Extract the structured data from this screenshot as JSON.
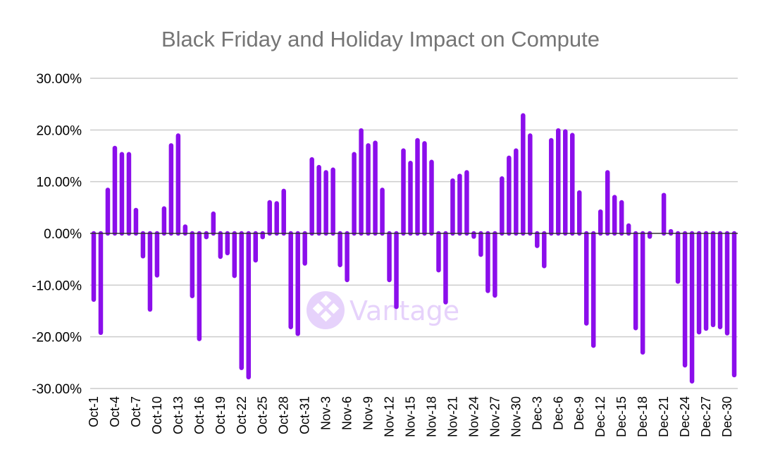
{
  "chart_data": {
    "type": "bar",
    "title": "Black Friday and Holiday Impact on Compute",
    "xlabel": "",
    "ylabel": "",
    "ylim": [
      -30,
      30
    ],
    "yticks": [
      30,
      20,
      10,
      0,
      -10,
      -20,
      -30
    ],
    "ytick_labels": [
      "30.00%",
      "20.00%",
      "10.00%",
      "0.00%",
      "-10.00%",
      "-20.00%",
      "-30.00%"
    ],
    "grid": true,
    "legend": "none",
    "bar_color": "#8b0eeb",
    "watermark": "Vantage",
    "categories": [
      "Oct-1",
      "Oct-2",
      "Oct-3",
      "Oct-4",
      "Oct-5",
      "Oct-6",
      "Oct-7",
      "Oct-8",
      "Oct-9",
      "Oct-10",
      "Oct-11",
      "Oct-12",
      "Oct-13",
      "Oct-14",
      "Oct-15",
      "Oct-16",
      "Oct-17",
      "Oct-18",
      "Oct-19",
      "Oct-20",
      "Oct-21",
      "Oct-22",
      "Oct-23",
      "Oct-24",
      "Oct-25",
      "Oct-26",
      "Oct-27",
      "Oct-28",
      "Oct-29",
      "Oct-30",
      "Oct-31",
      "Nov-1",
      "Nov-2",
      "Nov-3",
      "Nov-4",
      "Nov-5",
      "Nov-6",
      "Nov-7",
      "Nov-8",
      "Nov-9",
      "Nov-10",
      "Nov-11",
      "Nov-12",
      "Nov-13",
      "Nov-14",
      "Nov-15",
      "Nov-16",
      "Nov-17",
      "Nov-18",
      "Nov-19",
      "Nov-20",
      "Nov-21",
      "Nov-22",
      "Nov-23",
      "Nov-24",
      "Nov-25",
      "Nov-26",
      "Nov-27",
      "Nov-28",
      "Nov-29",
      "Nov-30",
      "Dec-1",
      "Dec-2",
      "Dec-3",
      "Dec-4",
      "Dec-5",
      "Dec-6",
      "Dec-7",
      "Dec-8",
      "Dec-9",
      "Dec-10",
      "Dec-11",
      "Dec-12",
      "Dec-13",
      "Dec-14",
      "Dec-15",
      "Dec-16",
      "Dec-17",
      "Dec-18",
      "Dec-19",
      "Dec-20",
      "Dec-21",
      "Dec-22",
      "Dec-23",
      "Dec-24",
      "Dec-25",
      "Dec-26",
      "Dec-27",
      "Dec-28",
      "Dec-29",
      "Dec-30",
      "Dec-31"
    ],
    "values": [
      -12.8,
      -19.2,
      8.4,
      16.5,
      15.3,
      15.3,
      4.5,
      -4.4,
      -14.7,
      -8.1,
      4.8,
      17.0,
      18.9,
      1.3,
      -12.1,
      -20.4,
      -0.7,
      3.8,
      -4.5,
      -3.8,
      -8.2,
      -26.0,
      -27.8,
      -5.2,
      -0.7,
      6.0,
      5.8,
      8.2,
      -18.1,
      -19.4,
      -5.8,
      14.3,
      12.8,
      11.8,
      12.3,
      -6.1,
      -9.0,
      15.3,
      19.9,
      17.0,
      17.5,
      8.4,
      -9.0,
      -14.2,
      16.0,
      13.6,
      18.0,
      17.4,
      13.8,
      -7.1,
      -13.3,
      10.2,
      11.1,
      11.8,
      -0.6,
      -4.1,
      -11.1,
      -12.0,
      10.6,
      14.6,
      16.0,
      22.8,
      18.9,
      -2.4,
      -6.3,
      18.0,
      19.9,
      19.7,
      19.0,
      7.9,
      -17.4,
      -21.7,
      4.2,
      11.8,
      7.0,
      6.0,
      1.5,
      -18.3,
      -23.0,
      -0.6,
      0,
      7.4,
      0.4,
      -9.3,
      -25.5,
      -28.6,
      -19.1,
      -18.4,
      -17.7,
      -18.1,
      -19.3,
      -27.4
    ],
    "tick_labels": [
      "Oct-1",
      "Oct-4",
      "Oct-7",
      "Oct-10",
      "Oct-13",
      "Oct-16",
      "Oct-19",
      "Oct-22",
      "Oct-25",
      "Oct-28",
      "Oct-31",
      "Nov-3",
      "Nov-6",
      "Nov-9",
      "Nov-12",
      "Nov-15",
      "Nov-18",
      "Nov-21",
      "Nov-24",
      "Nov-27",
      "Nov-30",
      "Dec-3",
      "Dec-6",
      "Dec-9",
      "Dec-12",
      "Dec-15",
      "Dec-18",
      "Dec-21",
      "Dec-24",
      "Dec-27",
      "Dec-30"
    ]
  }
}
